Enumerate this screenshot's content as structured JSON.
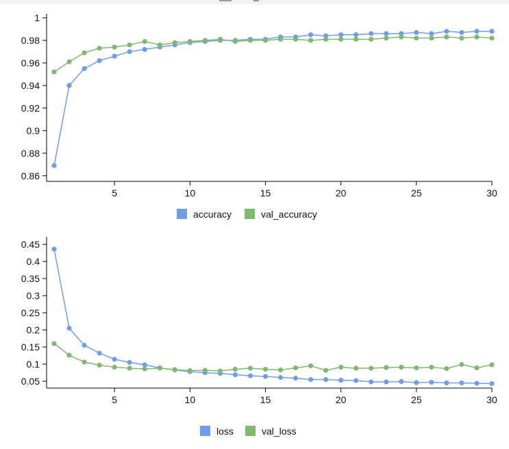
{
  "colors": {
    "train": "#6f9ee8",
    "val": "#7fb86f",
    "axis": "#000000"
  },
  "chart_data": [
    {
      "type": "line",
      "title": "",
      "xlabel": "",
      "ylabel": "",
      "xlim": [
        0.5,
        30
      ],
      "ylim": [
        0.855,
        1.0
      ],
      "grid": false,
      "legend": "bottom-center",
      "x_ticks": [
        5,
        10,
        15,
        20,
        25,
        30
      ],
      "y_ticks": [
        0.86,
        0.88,
        0.9,
        0.92,
        0.94,
        0.96,
        0.98,
        1
      ],
      "x_tick_labels": [
        "5",
        "10",
        "15",
        "20",
        "25",
        "30"
      ],
      "y_tick_labels": [
        "0.86",
        "0.88",
        "0.9",
        "0.92",
        "0.94",
        "0.96",
        "0.98",
        "1"
      ],
      "x": [
        1,
        2,
        3,
        4,
        5,
        6,
        7,
        8,
        9,
        10,
        11,
        12,
        13,
        14,
        15,
        16,
        17,
        18,
        19,
        20,
        21,
        22,
        23,
        24,
        25,
        26,
        27,
        28,
        29,
        30
      ],
      "series": [
        {
          "name": "accuracy",
          "color_key": "train",
          "values": [
            0.869,
            0.94,
            0.955,
            0.962,
            0.966,
            0.97,
            0.972,
            0.974,
            0.976,
            0.978,
            0.979,
            0.98,
            0.98,
            0.981,
            0.981,
            0.983,
            0.983,
            0.985,
            0.984,
            0.985,
            0.985,
            0.986,
            0.986,
            0.986,
            0.987,
            0.986,
            0.988,
            0.987,
            0.988,
            0.988
          ]
        },
        {
          "name": "val_accuracy",
          "color_key": "val",
          "values": [
            0.952,
            0.961,
            0.969,
            0.973,
            0.974,
            0.976,
            0.979,
            0.976,
            0.978,
            0.979,
            0.98,
            0.981,
            0.979,
            0.98,
            0.98,
            0.981,
            0.981,
            0.98,
            0.981,
            0.981,
            0.981,
            0.981,
            0.982,
            0.983,
            0.982,
            0.982,
            0.983,
            0.982,
            0.983,
            0.982
          ]
        }
      ]
    },
    {
      "type": "line",
      "title": "",
      "xlabel": "",
      "ylabel": "",
      "xlim": [
        0.5,
        30
      ],
      "ylim": [
        0.03,
        0.46
      ],
      "grid": false,
      "legend": "bottom-center",
      "x_ticks": [
        5,
        10,
        15,
        20,
        25,
        30
      ],
      "y_ticks": [
        0.05,
        0.1,
        0.15,
        0.2,
        0.25,
        0.3,
        0.35,
        0.4,
        0.45
      ],
      "x_tick_labels": [
        "5",
        "10",
        "15",
        "20",
        "25",
        "30"
      ],
      "y_tick_labels": [
        "0.05",
        "0.1",
        "0.15",
        "0.2",
        "0.25",
        "0.3",
        "0.35",
        "0.4",
        "0.45"
      ],
      "x": [
        1,
        2,
        3,
        4,
        5,
        6,
        7,
        8,
        9,
        10,
        11,
        12,
        13,
        14,
        15,
        16,
        17,
        18,
        19,
        20,
        21,
        22,
        23,
        24,
        25,
        26,
        27,
        28,
        29,
        30
      ],
      "series": [
        {
          "name": "loss",
          "color_key": "train",
          "values": [
            0.436,
            0.205,
            0.155,
            0.132,
            0.114,
            0.105,
            0.098,
            0.089,
            0.083,
            0.078,
            0.075,
            0.073,
            0.069,
            0.066,
            0.064,
            0.061,
            0.059,
            0.055,
            0.055,
            0.053,
            0.052,
            0.048,
            0.048,
            0.049,
            0.046,
            0.047,
            0.045,
            0.045,
            0.044,
            0.043
          ]
        },
        {
          "name": "val_loss",
          "color_key": "val",
          "values": [
            0.16,
            0.126,
            0.106,
            0.097,
            0.091,
            0.088,
            0.086,
            0.088,
            0.084,
            0.081,
            0.082,
            0.08,
            0.085,
            0.088,
            0.085,
            0.083,
            0.089,
            0.095,
            0.082,
            0.091,
            0.088,
            0.088,
            0.09,
            0.091,
            0.089,
            0.091,
            0.087,
            0.099,
            0.089,
            0.098
          ]
        }
      ]
    }
  ]
}
